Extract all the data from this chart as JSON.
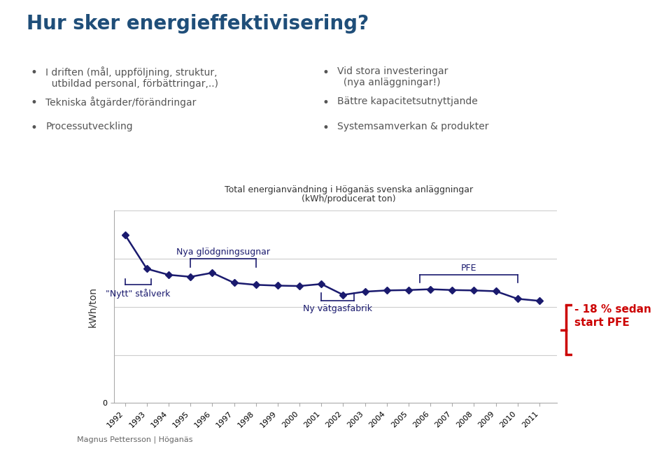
{
  "title_line1": "Total energianvändning i Höganäs svenska anläggningar",
  "title_line2": "(kWh/producerat ton)",
  "ylabel": "kWh/ton",
  "background_color": "#ffffff",
  "line_color": "#1a1a6e",
  "marker_color": "#1a1a6e",
  "years": [
    1992,
    1993,
    1994,
    1995,
    1996,
    1997,
    1998,
    1999,
    2000,
    2001,
    2002,
    2003,
    2004,
    2005,
    2006,
    2007,
    2008,
    2009,
    2010,
    2011
  ],
  "values": [
    4200,
    3350,
    3200,
    3150,
    3250,
    3000,
    2950,
    2930,
    2920,
    2970,
    2700,
    2780,
    2810,
    2820,
    2840,
    2820,
    2810,
    2790,
    2600,
    2550
  ],
  "ylim_min": 0,
  "ylim_max": 4800,
  "heading": "Hur sker energieffektivisering?",
  "heading_color": "#1F4E79",
  "bullet_color": "#555555",
  "bullets_left": [
    "I driften (mål, uppföljning, struktur,\n  utbildad personal, förbättringar,..)",
    "Tekniska åtgärder/förändringar",
    "Processutveckling"
  ],
  "bullets_right": [
    "Vid stora investeringar\n  (nya anläggningar!)",
    "Bättre kapacitetsutnyttjande",
    "Systemsamverkan & produkter"
  ],
  "annotation_stalverk": "\"Nytt\" stålverk",
  "annotation_ugnar": "Nya glödgningsugnar",
  "annotation_vatgas": "Ny vätgasfabrik",
  "annotation_pfe": "PFE",
  "annotation_18pct_line1": "- 18 % sedan",
  "annotation_18pct_line2": "start PFE",
  "annotation_color": "#1a1a6e",
  "annotation_18_color": "#CC0000",
  "footer": "Magnus Pettersson | Höganäs",
  "right_bar_color": "#1F4E79",
  "grid_color": "#cccccc",
  "tick_fontsize": 8,
  "axis_label_fontsize": 10
}
